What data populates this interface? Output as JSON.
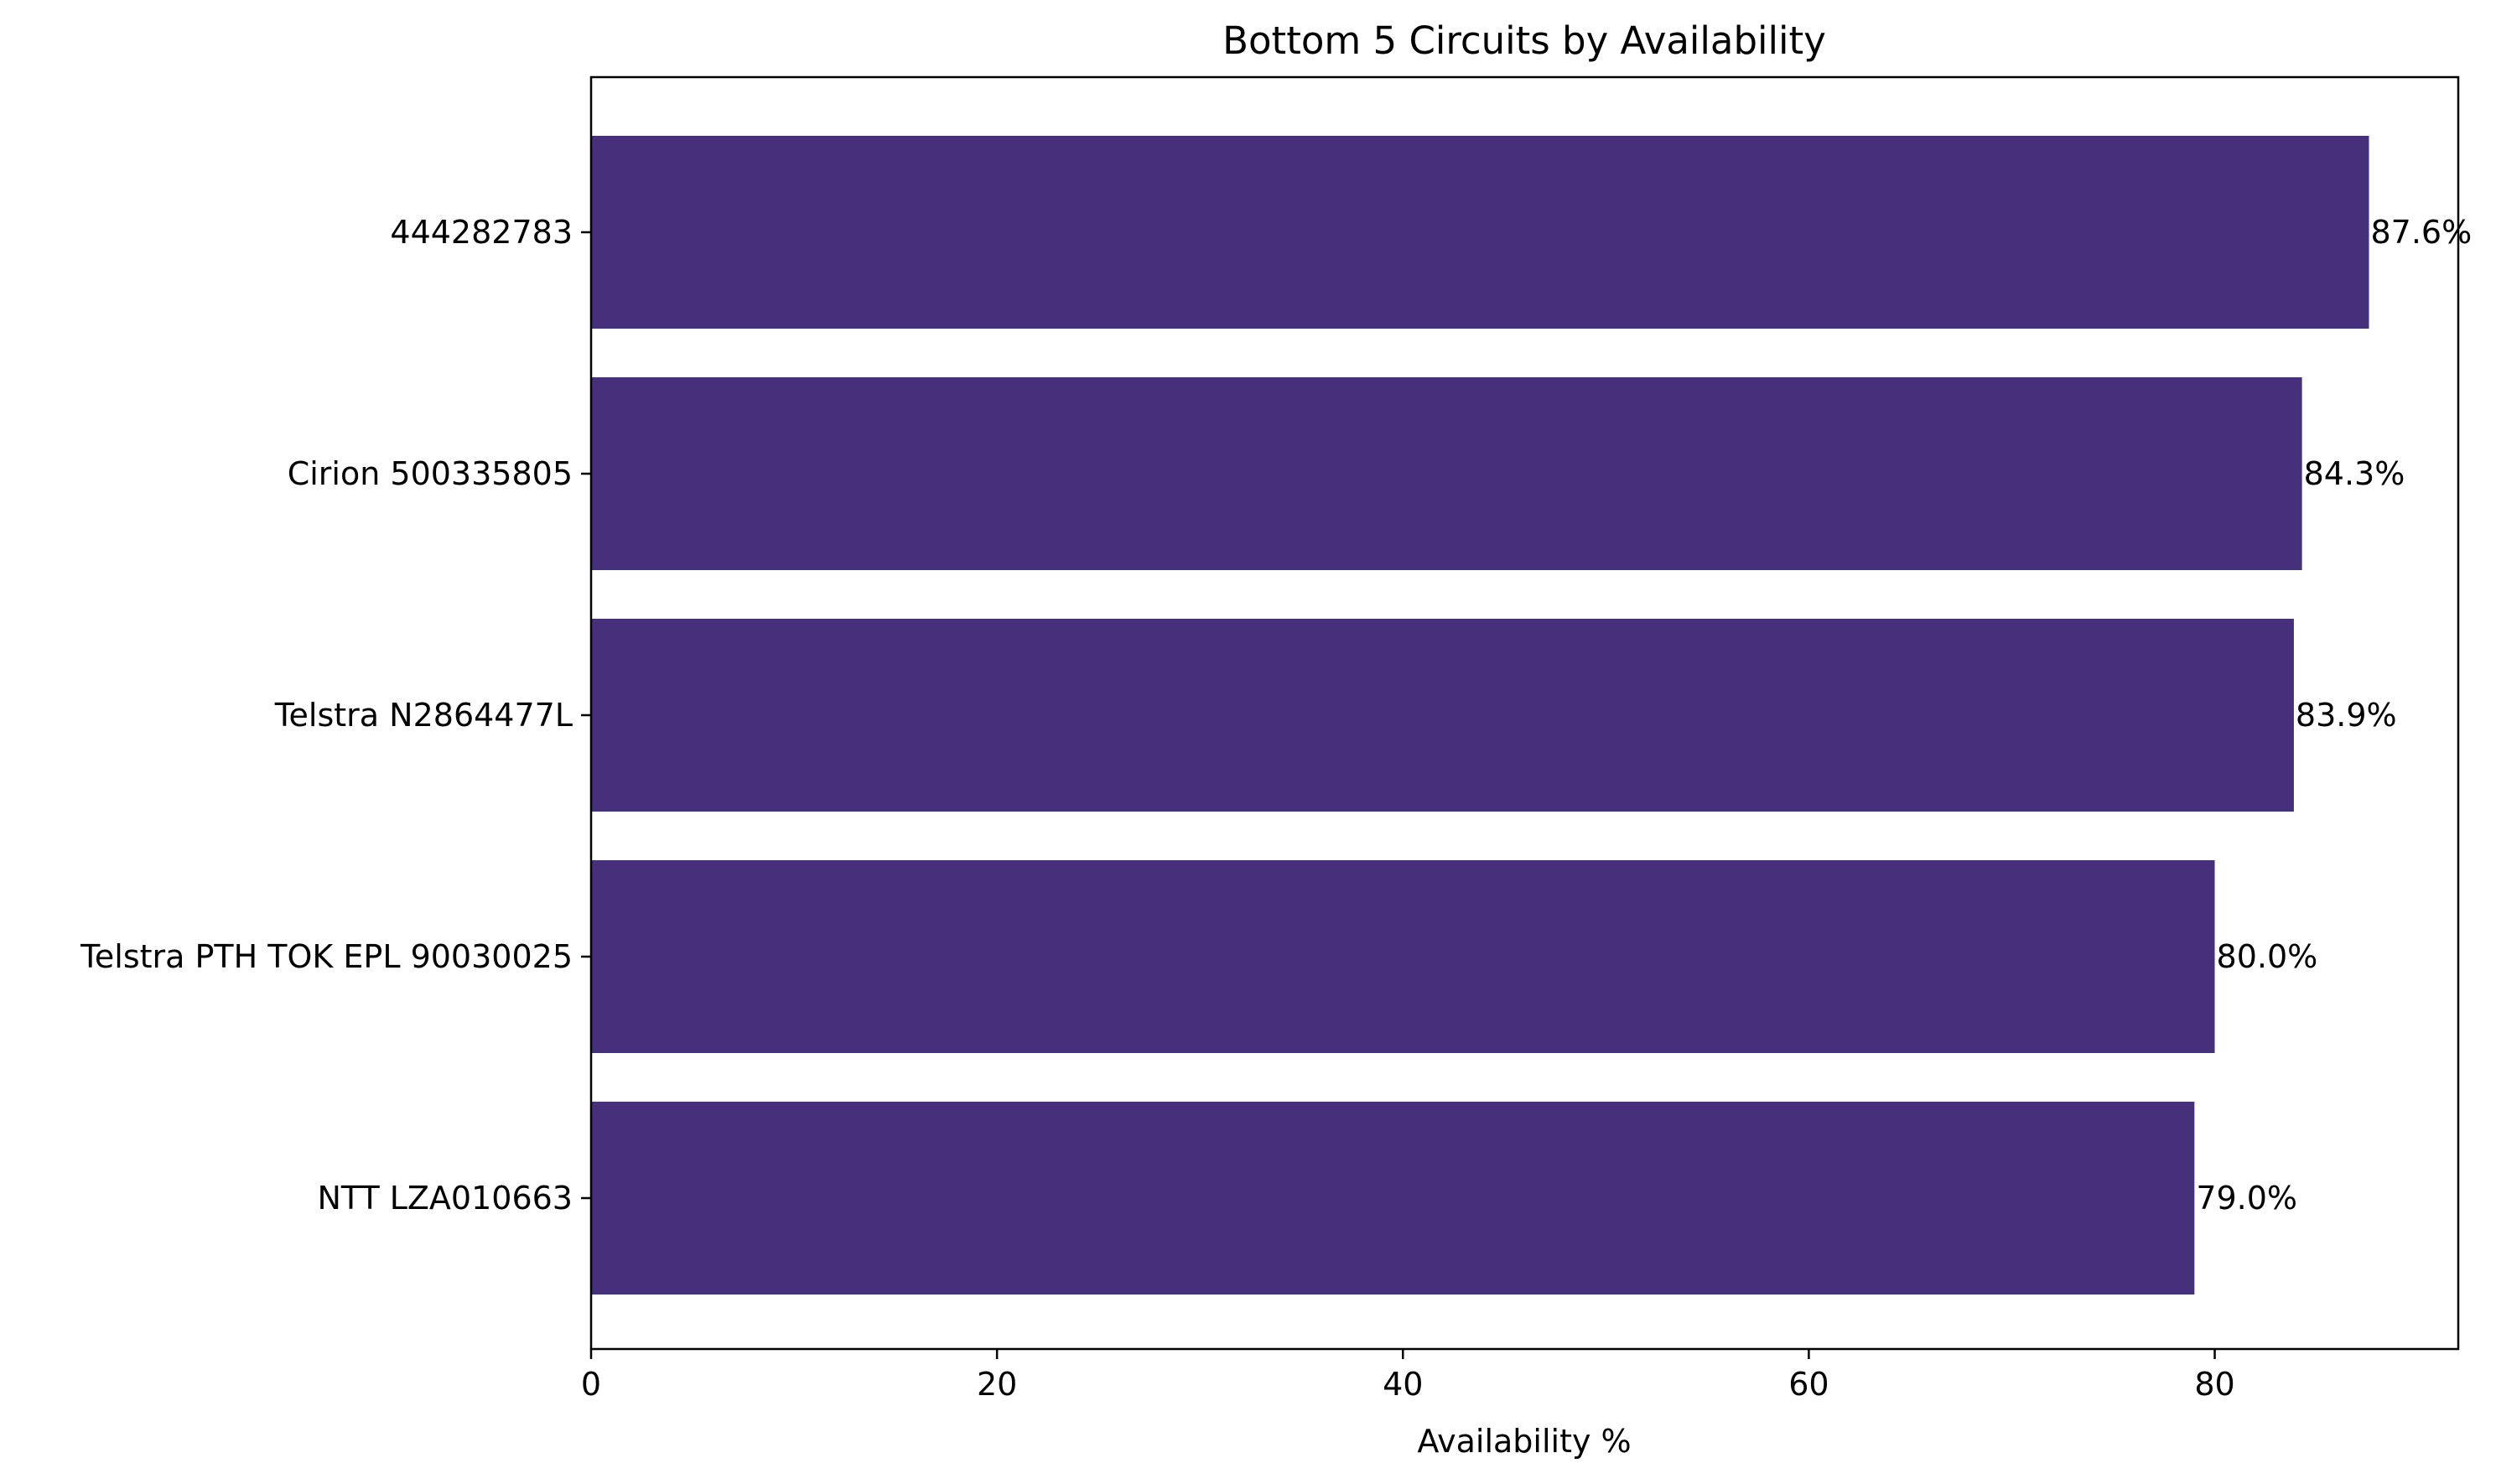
{
  "chart_data": {
    "type": "bar",
    "orientation": "horizontal",
    "title": "Bottom 5 Circuits by Availability",
    "xlabel": "Availability %",
    "ylabel": "",
    "categories": [
      "444282783",
      "Cirion 500335805",
      "Telstra N2864477L",
      "Telstra PTH TOK EPL 90030025",
      "NTT LZA010663"
    ],
    "values": [
      87.6,
      84.3,
      83.9,
      80.0,
      79.0
    ],
    "value_labels": [
      "87.6%",
      "84.3%",
      "83.9%",
      "80.0%",
      "79.0%"
    ],
    "xlim": [
      0,
      92
    ],
    "xticks": [
      0,
      20,
      40,
      60,
      80
    ],
    "xtick_labels": [
      "0",
      "20",
      "40",
      "60",
      "80"
    ],
    "grid": false,
    "legend": "none",
    "colors": {
      "bar": "#46307b",
      "axis": "#000000",
      "background": "#ffffff"
    }
  }
}
